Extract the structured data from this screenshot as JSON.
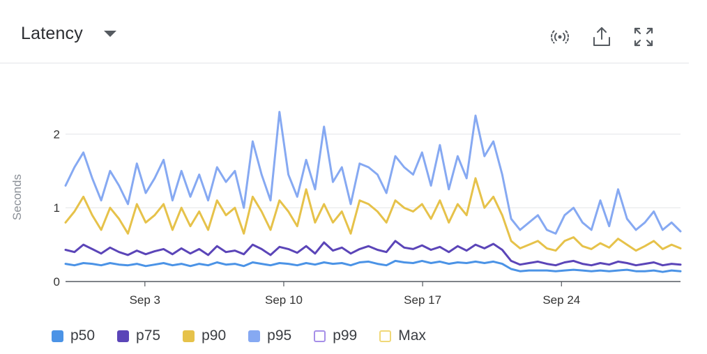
{
  "header": {
    "title": "Latency",
    "icons": [
      "live-stream-icon",
      "share-icon",
      "expand-icon"
    ]
  },
  "colors": {
    "p50": "#4b93e6",
    "p75": "#5b45b8",
    "p90": "#e6c24a",
    "p95": "#86a9f2",
    "p99": "#a68fe8",
    "max": "#f0d878",
    "grid": "#e3e5e8",
    "axis": "#555a60"
  },
  "chart_data": {
    "type": "line",
    "ylabel": "Seconds",
    "xlabel": "",
    "ylim": [
      0,
      2.4
    ],
    "yticks": [
      {
        "value": 0,
        "label": "0"
      },
      {
        "value": 1,
        "label": "1"
      },
      {
        "value": 2,
        "label": "2"
      }
    ],
    "xlim": [
      "Aug 30",
      "Sep 30"
    ],
    "xticks": [
      {
        "date": "Sep 3",
        "label": "Sep 3"
      },
      {
        "date": "Sep 10",
        "label": "Sep 10"
      },
      {
        "date": "Sep 17",
        "label": "Sep 17"
      },
      {
        "date": "Sep 24",
        "label": "Sep 24"
      }
    ],
    "grid": true,
    "legend_position": "bottom-left",
    "series": [
      {
        "name": "p50",
        "key": "p50",
        "filled": true,
        "values": [
          0.24,
          0.22,
          0.25,
          0.24,
          0.22,
          0.25,
          0.23,
          0.22,
          0.24,
          0.21,
          0.23,
          0.25,
          0.22,
          0.24,
          0.21,
          0.24,
          0.22,
          0.26,
          0.23,
          0.24,
          0.21,
          0.26,
          0.24,
          0.22,
          0.25,
          0.24,
          0.22,
          0.25,
          0.23,
          0.26,
          0.24,
          0.25,
          0.22,
          0.26,
          0.27,
          0.24,
          0.22,
          0.28,
          0.26,
          0.25,
          0.28,
          0.25,
          0.27,
          0.24,
          0.26,
          0.25,
          0.27,
          0.25,
          0.27,
          0.24,
          0.17,
          0.14,
          0.15,
          0.15,
          0.15,
          0.14,
          0.15,
          0.16,
          0.15,
          0.14,
          0.15,
          0.14,
          0.15,
          0.16,
          0.14,
          0.14,
          0.15,
          0.13,
          0.15,
          0.14
        ]
      },
      {
        "name": "p75",
        "key": "p75",
        "filled": true,
        "values": [
          0.43,
          0.4,
          0.5,
          0.44,
          0.38,
          0.46,
          0.4,
          0.36,
          0.42,
          0.37,
          0.41,
          0.44,
          0.37,
          0.45,
          0.38,
          0.44,
          0.36,
          0.48,
          0.4,
          0.42,
          0.37,
          0.5,
          0.44,
          0.36,
          0.47,
          0.44,
          0.39,
          0.48,
          0.38,
          0.53,
          0.42,
          0.46,
          0.38,
          0.44,
          0.48,
          0.43,
          0.4,
          0.55,
          0.46,
          0.44,
          0.49,
          0.43,
          0.47,
          0.4,
          0.48,
          0.42,
          0.5,
          0.45,
          0.51,
          0.43,
          0.28,
          0.23,
          0.25,
          0.27,
          0.24,
          0.22,
          0.26,
          0.28,
          0.24,
          0.22,
          0.25,
          0.23,
          0.27,
          0.25,
          0.22,
          0.24,
          0.26,
          0.22,
          0.24,
          0.23
        ]
      },
      {
        "name": "p90",
        "key": "p90",
        "filled": true,
        "values": [
          0.8,
          0.95,
          1.15,
          0.9,
          0.7,
          1.0,
          0.85,
          0.65,
          1.05,
          0.8,
          0.9,
          1.05,
          0.7,
          1.0,
          0.75,
          0.95,
          0.7,
          1.1,
          0.9,
          1.0,
          0.65,
          1.15,
          0.95,
          0.7,
          1.1,
          0.95,
          0.75,
          1.25,
          0.8,
          1.05,
          0.8,
          0.95,
          0.65,
          1.1,
          1.05,
          0.95,
          0.8,
          1.1,
          1.0,
          0.95,
          1.05,
          0.85,
          1.1,
          0.8,
          1.05,
          0.9,
          1.4,
          1.0,
          1.15,
          0.9,
          0.55,
          0.45,
          0.5,
          0.55,
          0.45,
          0.42,
          0.55,
          0.6,
          0.48,
          0.44,
          0.52,
          0.46,
          0.58,
          0.5,
          0.42,
          0.48,
          0.55,
          0.44,
          0.5,
          0.45
        ]
      },
      {
        "name": "p95",
        "key": "p95",
        "filled": true,
        "values": [
          1.3,
          1.55,
          1.75,
          1.4,
          1.1,
          1.5,
          1.3,
          1.05,
          1.6,
          1.2,
          1.4,
          1.65,
          1.1,
          1.5,
          1.15,
          1.45,
          1.1,
          1.55,
          1.35,
          1.5,
          1.0,
          1.9,
          1.45,
          1.1,
          2.3,
          1.45,
          1.15,
          1.65,
          1.25,
          2.1,
          1.35,
          1.55,
          1.05,
          1.6,
          1.55,
          1.45,
          1.2,
          1.7,
          1.55,
          1.45,
          1.75,
          1.3,
          1.85,
          1.25,
          1.7,
          1.4,
          2.25,
          1.7,
          1.9,
          1.45,
          0.85,
          0.7,
          0.8,
          0.9,
          0.7,
          0.65,
          0.9,
          1.0,
          0.8,
          0.7,
          1.1,
          0.75,
          1.25,
          0.85,
          0.7,
          0.8,
          0.95,
          0.7,
          0.8,
          0.68
        ]
      },
      {
        "name": "p99",
        "key": "p99",
        "filled": false,
        "values": []
      },
      {
        "name": "Max",
        "key": "max",
        "filled": false,
        "values": []
      }
    ]
  }
}
